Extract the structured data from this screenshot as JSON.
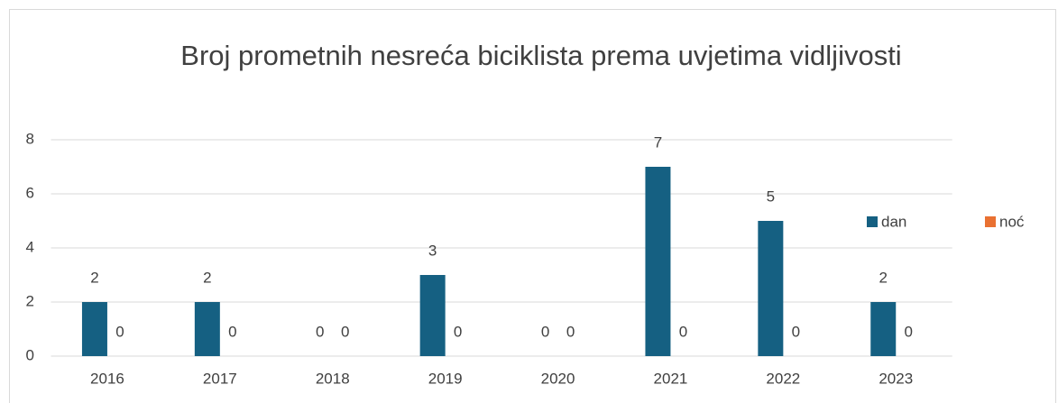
{
  "chart_data": {
    "type": "bar",
    "title": "Broj prometnih nesreća biciklista prema uvjetima vidljivosti",
    "categories": [
      "2016",
      "2017",
      "2018",
      "2019",
      "2020",
      "2021",
      "2022",
      "2023"
    ],
    "series": [
      {
        "name": "dan",
        "color": "#156082",
        "values": [
          2,
          2,
          0,
          3,
          0,
          7,
          5,
          2
        ]
      },
      {
        "name": "noć",
        "color": "#e97132",
        "values": [
          0,
          0,
          0,
          0,
          0,
          0,
          0,
          0
        ]
      }
    ],
    "ylim": [
      0,
      8
    ],
    "yticks": [
      0,
      2,
      4,
      6,
      8
    ],
    "grid": true,
    "legend": "right"
  }
}
